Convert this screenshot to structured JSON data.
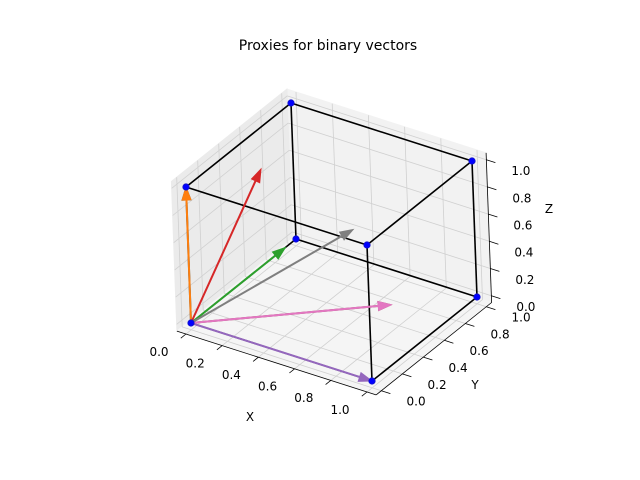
{
  "chart_data": {
    "type": "3d-quiver",
    "title": "Proxies for binary vectors",
    "xlabel": "X",
    "ylabel": "Y",
    "zlabel": "Z",
    "xlim": [
      0,
      1
    ],
    "ylim": [
      0,
      1
    ],
    "zlim": [
      0,
      1
    ],
    "xticks": [
      "0.0",
      "0.2",
      "0.4",
      "0.6",
      "0.8",
      "1.0"
    ],
    "yticks": [
      "0.0",
      "0.2",
      "0.4",
      "0.6",
      "0.8",
      "1.0"
    ],
    "zticks": [
      "0.0",
      "0.2",
      "0.4",
      "0.6",
      "0.8",
      "1.0"
    ],
    "grid": true,
    "cube_vertices": [
      [
        0,
        0,
        0
      ],
      [
        1,
        0,
        0
      ],
      [
        0,
        1,
        0
      ],
      [
        1,
        1,
        0
      ],
      [
        0,
        0,
        1
      ],
      [
        1,
        0,
        1
      ],
      [
        0,
        1,
        1
      ],
      [
        1,
        1,
        1
      ]
    ],
    "cube_edges_color": "#000000",
    "vertex_color": "#0000ff",
    "arrows": [
      {
        "vector": [
          0,
          0,
          1
        ],
        "color": "#1f77b4"
      },
      {
        "vector": [
          0,
          0,
          1
        ],
        "color": "#ff7f0e"
      },
      {
        "vector": [
          0,
          0.9,
          0
        ],
        "color": "#2ca02c"
      },
      {
        "vector": [
          0,
          0.7,
          0.7
        ],
        "color": "#d62728"
      },
      {
        "vector": [
          1,
          0,
          0
        ],
        "color": "#9467bd"
      },
      {
        "vector": [
          0.7,
          0.7,
          0
        ],
        "color": "#8c564b"
      },
      {
        "vector": [
          0.7,
          0.7,
          0
        ],
        "color": "#e377c2"
      },
      {
        "vector": [
          0.577,
          0.577,
          0.577
        ],
        "color": "#7f7f7f"
      }
    ]
  }
}
